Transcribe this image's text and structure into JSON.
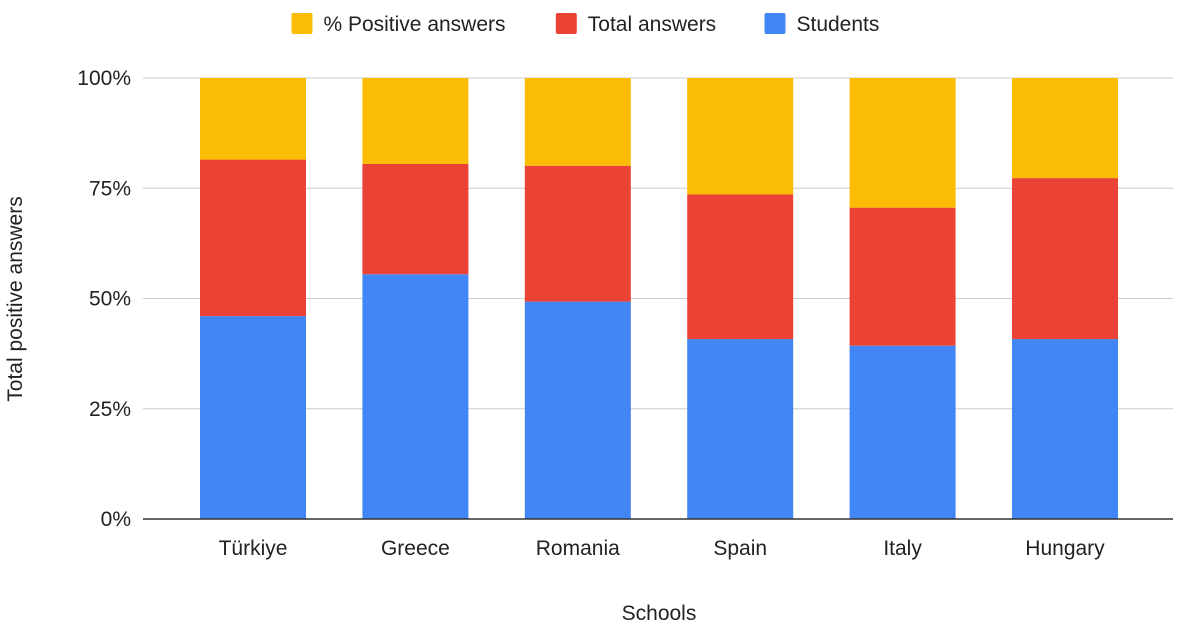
{
  "chart_data": {
    "type": "bar",
    "stacked": "percent",
    "title": "",
    "xlabel": "Schools",
    "ylabel": "Total positive answers",
    "categories": [
      "Türkiye",
      "Greece",
      "Romania",
      "Spain",
      "Italy",
      "Hungary"
    ],
    "series": [
      {
        "name": "Students",
        "color": "#4285F4",
        "values": [
          46,
          55.5,
          49.3,
          40.8,
          39.3,
          40.8
        ]
      },
      {
        "name": "Total answers",
        "color": "#EA4335",
        "values": [
          35.5,
          25,
          30.8,
          32.8,
          31.3,
          36.5
        ]
      },
      {
        "name": "% Positive answers",
        "color": "#FBBC04",
        "values": [
          18.5,
          19.5,
          19.9,
          26.4,
          29.4,
          22.7
        ]
      }
    ],
    "legend_order": [
      "% Positive answers",
      "Total answers",
      "Students"
    ],
    "ylim": [
      0,
      100
    ],
    "yticks": [
      "0%",
      "25%",
      "50%",
      "75%",
      "100%"
    ],
    "legend_position": "top",
    "grid": true
  }
}
